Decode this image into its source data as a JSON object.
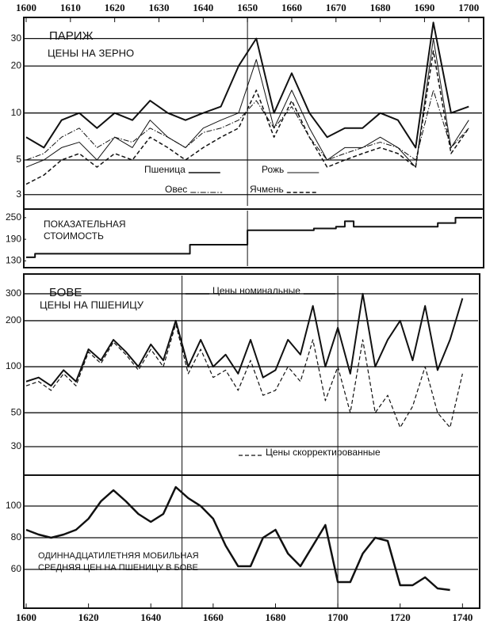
{
  "chart_data": [
    {
      "type": "line",
      "title": [
        "ПАРИЖ",
        "ЦЕНЫ НА ЗЕРНО"
      ],
      "log": true,
      "grid": true,
      "xaxis": "top",
      "xlim": [
        1600,
        1703
      ],
      "xticks": [
        1600,
        1610,
        1620,
        1630,
        1640,
        1650,
        1660,
        1670,
        1680,
        1690,
        1700
      ],
      "ylim": [
        2.6,
        40
      ],
      "yticks": [
        3,
        5,
        10,
        20,
        30
      ],
      "vlines": [
        1650
      ],
      "x": [
        1600,
        1604,
        1608,
        1612,
        1616,
        1620,
        1624,
        1628,
        1632,
        1636,
        1640,
        1644,
        1648,
        1652,
        1656,
        1660,
        1664,
        1668,
        1672,
        1676,
        1680,
        1684,
        1688,
        1692,
        1696,
        1700
      ],
      "series": [
        {
          "name": "Пшеница",
          "color": "#111111",
          "dash": "solid",
          "width": 2,
          "values": [
            7,
            6,
            9,
            10,
            8,
            10,
            9,
            12,
            10,
            9,
            10,
            11,
            20,
            30,
            10,
            18,
            10,
            7,
            8,
            8,
            10,
            9,
            6,
            38,
            10,
            11
          ]
        },
        {
          "name": "Рожь",
          "color": "#111111",
          "dash": "solid",
          "width": 1,
          "values": [
            4.5,
            5,
            6,
            6.5,
            5,
            7,
            6,
            9,
            7,
            6,
            8,
            9,
            10,
            22,
            8,
            14,
            8,
            5,
            6,
            6,
            7,
            6,
            4.5,
            30,
            6,
            9
          ]
        },
        {
          "name": "Овес",
          "color": "#111111",
          "dash": "dashdot",
          "width": 1,
          "values": [
            5,
            5.5,
            7,
            8,
            6,
            7,
            6.5,
            8,
            7,
            6,
            7.5,
            8,
            9,
            12,
            8,
            11,
            7,
            5,
            5.5,
            6,
            6.5,
            6,
            5,
            14,
            6,
            8
          ]
        },
        {
          "name": "Ячмень",
          "color": "#111111",
          "dash": "dashed",
          "width": 1.5,
          "values": [
            3.5,
            4,
            5,
            5.5,
            4.5,
            5.5,
            5,
            7,
            6,
            5,
            6,
            7,
            8,
            14,
            7,
            12,
            7,
            4.5,
            5,
            5.5,
            6,
            5.5,
            4.5,
            25,
            5.5,
            8
          ]
        }
      ]
    },
    {
      "type": "step",
      "title": [
        "ПОКАЗАТЕЛЬНАЯ",
        "СТОИМОСТЬ"
      ],
      "log": false,
      "grid": false,
      "xlim": [
        1600,
        1703
      ],
      "ylim": [
        120,
        265
      ],
      "yticks": [
        130,
        190,
        250
      ],
      "vlines": [
        1650
      ],
      "x": [
        1600,
        1602,
        1635,
        1637,
        1648,
        1650,
        1665,
        1670,
        1672,
        1674,
        1690,
        1693,
        1697,
        1703
      ],
      "series": [
        {
          "name": null,
          "color": "#111111",
          "dash": "solid",
          "width": 2,
          "values": [
            140,
            150,
            150,
            175,
            175,
            215,
            220,
            225,
            240,
            225,
            225,
            235,
            250,
            250
          ]
        }
      ]
    },
    {
      "type": "line",
      "title": [
        "БОВЕ",
        "ЦЕНЫ НА ПШЕНИЦУ"
      ],
      "log": true,
      "grid": true,
      "xlim": [
        1600,
        1745
      ],
      "ylim": [
        20,
        385
      ],
      "yticks": [
        30,
        50,
        100,
        200,
        300
      ],
      "vlines": [
        1650,
        1700
      ],
      "x": [
        1600,
        1604,
        1608,
        1612,
        1616,
        1620,
        1624,
        1628,
        1632,
        1636,
        1640,
        1644,
        1648,
        1652,
        1656,
        1660,
        1664,
        1668,
        1672,
        1676,
        1680,
        1684,
        1688,
        1692,
        1696,
        1700,
        1704,
        1708,
        1712,
        1716,
        1720,
        1724,
        1728,
        1732,
        1736,
        1740
      ],
      "series": [
        {
          "name": "Цены номинальные",
          "color": "#111111",
          "dash": "solid",
          "width": 2,
          "values": [
            80,
            85,
            75,
            95,
            80,
            130,
            110,
            150,
            125,
            100,
            140,
            110,
            200,
            100,
            150,
            100,
            120,
            90,
            150,
            85,
            95,
            150,
            120,
            250,
            100,
            180,
            90,
            300,
            100,
            150,
            200,
            110,
            250,
            95,
            150,
            280
          ]
        },
        {
          "name": "Цены скорректированные",
          "color": "#111111",
          "dash": "dashed",
          "width": 1.2,
          "values": [
            75,
            80,
            70,
            90,
            75,
            125,
            105,
            145,
            120,
            95,
            130,
            100,
            190,
            90,
            130,
            85,
            95,
            70,
            110,
            65,
            70,
            100,
            80,
            150,
            60,
            100,
            50,
            150,
            50,
            65,
            40,
            55,
            100,
            50,
            40,
            90
          ]
        }
      ]
    },
    {
      "type": "line",
      "title": [
        "ОДИННАДЦАТИЛЕТНЯЯ МОБИЛЬНАЯ",
        "СРЕДНЯЯ ЦЕН НА ПШЕНИЦУ В БОВЕ"
      ],
      "log": false,
      "grid": true,
      "xaxis": "bottom",
      "xlim": [
        1600,
        1745
      ],
      "xticks": [
        1600,
        1620,
        1640,
        1660,
        1680,
        1700,
        1720,
        1740
      ],
      "ylim": [
        37,
        118
      ],
      "yticks": [
        60,
        80,
        100
      ],
      "vlines": [
        1650,
        1700
      ],
      "x": [
        1600,
        1604,
        1608,
        1612,
        1616,
        1620,
        1624,
        1628,
        1632,
        1636,
        1640,
        1644,
        1648,
        1652,
        1656,
        1660,
        1664,
        1668,
        1672,
        1676,
        1680,
        1684,
        1688,
        1692,
        1696,
        1700,
        1704,
        1708,
        1712,
        1716,
        1720,
        1724,
        1728,
        1732,
        1736
      ],
      "series": [
        {
          "name": null,
          "color": "#111111",
          "dash": "solid",
          "width": 2.5,
          "values": [
            85,
            82,
            80,
            82,
            85,
            92,
            103,
            110,
            103,
            95,
            90,
            95,
            112,
            105,
            100,
            92,
            75,
            62,
            62,
            80,
            85,
            70,
            62,
            75,
            88,
            52,
            52,
            70,
            80,
            78,
            50,
            50,
            55,
            48,
            47
          ]
        }
      ]
    }
  ]
}
